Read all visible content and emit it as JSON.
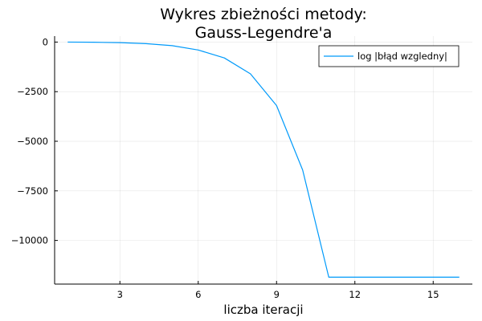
{
  "chart_data": {
    "type": "line",
    "title": [
      "Wykres zbieżności metody:",
      "Gauss-Legendre'a"
    ],
    "xlabel": "liczba iteracji",
    "ylabel": "",
    "xlim": [
      0.5,
      16.5
    ],
    "ylim": [
      -12200,
      300
    ],
    "xticks": [
      3,
      6,
      9,
      12,
      15
    ],
    "xtick_labels": [
      "3",
      "6",
      "9",
      "12",
      "15"
    ],
    "yticks": [
      0,
      -2500,
      -5000,
      -7500,
      -10000
    ],
    "ytick_labels": [
      "0",
      "−2500",
      "−5000",
      "−7500",
      "−10000"
    ],
    "grid": true,
    "legend_position": "top-right",
    "series": [
      {
        "name": "log |błąd wzgledny|",
        "color": "#009AFA",
        "x": [
          1,
          2,
          3,
          4,
          5,
          6,
          7,
          8,
          9,
          10,
          11,
          12,
          13,
          14,
          15,
          16
        ],
        "y": [
          0,
          -10,
          -30,
          -80,
          -180,
          -400,
          -800,
          -1600,
          -3200,
          -6450,
          -11850,
          -11850,
          -11850,
          -11850,
          -11850,
          -11850
        ]
      }
    ]
  }
}
